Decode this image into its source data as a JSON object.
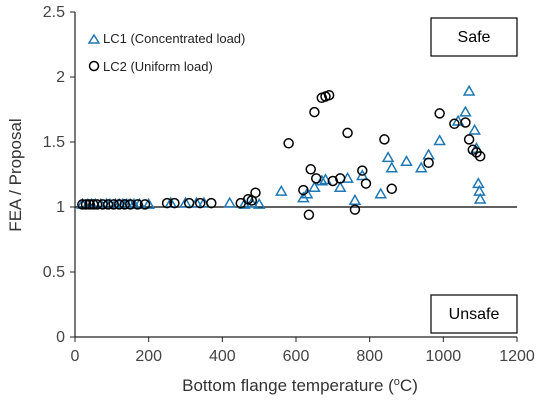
{
  "chart_data": {
    "type": "scatter",
    "xlabel": "Bottom flange temperature (",
    "xlabel_sup": "o",
    "xlabel_tail": "C)",
    "ylabel": "FEA / Proposal",
    "xlim": [
      0,
      1200
    ],
    "ylim": [
      0,
      2.5
    ],
    "x_ticks": [
      "0",
      "200",
      "400",
      "600",
      "800",
      "1000",
      "1200"
    ],
    "y_ticks": [
      "0",
      "0.5",
      "1",
      "1.5",
      "2",
      "2.5"
    ],
    "reference_line_y": 1,
    "grid": false,
    "legend_position": "top-left",
    "annotations": {
      "safe": "Safe",
      "unsafe": "Unsafe"
    },
    "series": [
      {
        "name": "LC1 (Concentrated load)",
        "marker": "triangle-open",
        "color": "#1f77b4",
        "points": [
          [
            20,
            1.02
          ],
          [
            35,
            1.02
          ],
          [
            45,
            1.02
          ],
          [
            55,
            1.02
          ],
          [
            70,
            1.02
          ],
          [
            85,
            1.02
          ],
          [
            95,
            1.02
          ],
          [
            110,
            1.02
          ],
          [
            120,
            1.02
          ],
          [
            130,
            1.02
          ],
          [
            140,
            1.02
          ],
          [
            150,
            1.02
          ],
          [
            160,
            1.02
          ],
          [
            175,
            1.02
          ],
          [
            200,
            1.02
          ],
          [
            260,
            1.03
          ],
          [
            300,
            1.03
          ],
          [
            330,
            1.03
          ],
          [
            350,
            1.03
          ],
          [
            420,
            1.03
          ],
          [
            460,
            1.02
          ],
          [
            480,
            1.03
          ],
          [
            500,
            1.02
          ],
          [
            560,
            1.12
          ],
          [
            620,
            1.07
          ],
          [
            630,
            1.1
          ],
          [
            650,
            1.15
          ],
          [
            670,
            1.2
          ],
          [
            680,
            1.21
          ],
          [
            720,
            1.15
          ],
          [
            740,
            1.22
          ],
          [
            760,
            1.05
          ],
          [
            780,
            1.24
          ],
          [
            830,
            1.1
          ],
          [
            850,
            1.38
          ],
          [
            860,
            1.3
          ],
          [
            900,
            1.35
          ],
          [
            940,
            1.3
          ],
          [
            960,
            1.4
          ],
          [
            990,
            1.51
          ],
          [
            1040,
            1.66
          ],
          [
            1060,
            1.73
          ],
          [
            1070,
            1.89
          ],
          [
            1085,
            1.59
          ],
          [
            1090,
            1.45
          ],
          [
            1095,
            1.18
          ],
          [
            1098,
            1.12
          ],
          [
            1100,
            1.06
          ]
        ]
      },
      {
        "name": "LC2 (Uniform load)",
        "marker": "circle-open",
        "color": "#000000",
        "points": [
          [
            20,
            1.02
          ],
          [
            30,
            1.02
          ],
          [
            40,
            1.02
          ],
          [
            50,
            1.02
          ],
          [
            60,
            1.02
          ],
          [
            75,
            1.02
          ],
          [
            90,
            1.02
          ],
          [
            105,
            1.02
          ],
          [
            120,
            1.02
          ],
          [
            135,
            1.02
          ],
          [
            150,
            1.02
          ],
          [
            170,
            1.02
          ],
          [
            190,
            1.02
          ],
          [
            250,
            1.03
          ],
          [
            270,
            1.03
          ],
          [
            310,
            1.03
          ],
          [
            340,
            1.03
          ],
          [
            370,
            1.03
          ],
          [
            450,
            1.03
          ],
          [
            470,
            1.06
          ],
          [
            480,
            1.05
          ],
          [
            490,
            1.11
          ],
          [
            580,
            1.49
          ],
          [
            620,
            1.13
          ],
          [
            635,
            0.94
          ],
          [
            640,
            1.29
          ],
          [
            650,
            1.73
          ],
          [
            655,
            1.22
          ],
          [
            670,
            1.84
          ],
          [
            680,
            1.85
          ],
          [
            690,
            1.86
          ],
          [
            700,
            1.2
          ],
          [
            720,
            1.22
          ],
          [
            740,
            1.57
          ],
          [
            760,
            0.98
          ],
          [
            780,
            1.28
          ],
          [
            790,
            1.18
          ],
          [
            840,
            1.52
          ],
          [
            860,
            1.14
          ],
          [
            960,
            1.34
          ],
          [
            990,
            1.72
          ],
          [
            1030,
            1.64
          ],
          [
            1060,
            1.65
          ],
          [
            1070,
            1.52
          ],
          [
            1080,
            1.44
          ],
          [
            1090,
            1.42
          ],
          [
            1100,
            1.39
          ]
        ]
      }
    ]
  }
}
